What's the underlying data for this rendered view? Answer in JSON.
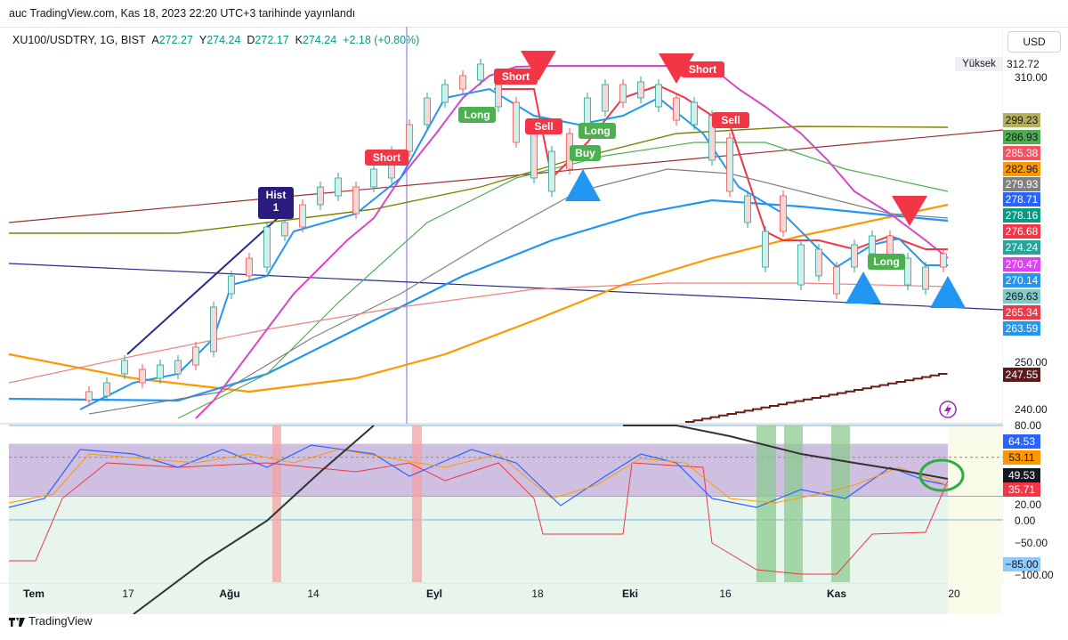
{
  "header": {
    "author": "auc",
    "text": "auc TradingView.com, Kas 18, 2023 22:20 UTC+3 tarihinde yayınlandı"
  },
  "legend": {
    "symbol": "XU100/USDTRY, 1G, BIST",
    "open_label": "A",
    "open": "272.27",
    "high_label": "Y",
    "high": "274.24",
    "low_label": "D",
    "low": "272.17",
    "close_label": "K",
    "close": "274.24",
    "change": "+2.18 (+0.80%)"
  },
  "currency": "USD",
  "high_marker": {
    "label": "Yüksek",
    "value": "312.72"
  },
  "price_axis": {
    "ticks": [
      "310.00",
      "250.00",
      "240.00"
    ]
  },
  "price_tags": [
    {
      "value": "299.23",
      "bg": "#b5b05a",
      "fg": "#131722"
    },
    {
      "value": "286.93",
      "bg": "#4caf50",
      "fg": "#131722"
    },
    {
      "value": "285.38",
      "bg": "#f7525f",
      "fg": "#ffffff"
    },
    {
      "value": "282.96",
      "bg": "#ff9800",
      "fg": "#131722"
    },
    {
      "value": "279.93",
      "bg": "#808080",
      "fg": "#ffffff"
    },
    {
      "value": "278.71",
      "bg": "#2962ff",
      "fg": "#ffffff"
    },
    {
      "value": "278.16",
      "bg": "#089981",
      "fg": "#ffffff"
    },
    {
      "value": "276.68",
      "bg": "#f23645",
      "fg": "#ffffff"
    },
    {
      "value": "274.24",
      "bg": "#26a69a",
      "fg": "#ffffff"
    },
    {
      "value": "270.47",
      "bg": "#e040fb",
      "fg": "#ffffff"
    },
    {
      "value": "270.14",
      "bg": "#2196f3",
      "fg": "#ffffff"
    },
    {
      "value": "269.63",
      "bg": "#80cbc4",
      "fg": "#131722"
    },
    {
      "value": "265.34",
      "bg": "#f23645",
      "fg": "#ffffff"
    },
    {
      "value": "263.59",
      "bg": "#2196f3",
      "fg": "#ffffff"
    },
    {
      "value": "247.55",
      "bg": "#5d1a1a",
      "fg": "#ffffff"
    }
  ],
  "osc_axis": {
    "ticks": [
      "80.00",
      "20.00",
      "0.00",
      "−50.00",
      "−100.00"
    ],
    "tags": [
      {
        "value": "64.53",
        "bg": "#2962ff",
        "fg": "#ffffff"
      },
      {
        "value": "53.11",
        "bg": "#ff9800",
        "fg": "#131722"
      },
      {
        "value": "49.53",
        "bg": "#131722",
        "fg": "#ffffff"
      },
      {
        "value": "35.71",
        "bg": "#f23645",
        "fg": "#ffffff"
      },
      {
        "value": "−85.00",
        "bg": "#90caf9",
        "fg": "#131722"
      }
    ]
  },
  "x_axis": {
    "labels": [
      "Tem",
      "17",
      "Ağu",
      "14",
      "Eyl",
      "18",
      "Eki",
      "16",
      "Kas",
      "20"
    ]
  },
  "signals": [
    {
      "label": "Hist\n1",
      "type": "hist"
    },
    {
      "label": "Short",
      "type": "short"
    },
    {
      "label": "Long",
      "type": "long"
    },
    {
      "label": "Short",
      "type": "short"
    },
    {
      "label": "Sell",
      "type": "sell"
    },
    {
      "label": "Long",
      "type": "long"
    },
    {
      "label": "Buy",
      "type": "buy"
    },
    {
      "label": "Short",
      "type": "short"
    },
    {
      "label": "Sell",
      "type": "sell"
    },
    {
      "label": "Long",
      "type": "long"
    }
  ],
  "footer": {
    "brand": "TradingView"
  },
  "colors": {
    "up": "#26a69a",
    "down": "#ef5350",
    "accent": "#2962ff"
  },
  "chart_data": {
    "type": "line",
    "title": "XU100/USDTRY, 1G, BIST",
    "xlabel": "",
    "ylabel": "",
    "ylim": [
      236,
      320
    ],
    "x": [
      "Tem",
      "17",
      "Ağu",
      "14",
      "Eyl",
      "18",
      "Eki",
      "16",
      "Kas",
      "20"
    ],
    "series": [
      {
        "values": [
          245,
          250,
          262,
          285,
          305,
          300,
          305,
          290,
          270,
          274.24
        ]
      }
    ],
    "oscillator": {
      "ylim": [
        -100,
        80
      ],
      "levels": [
        80,
        20,
        0,
        -50,
        -85
      ]
    }
  }
}
